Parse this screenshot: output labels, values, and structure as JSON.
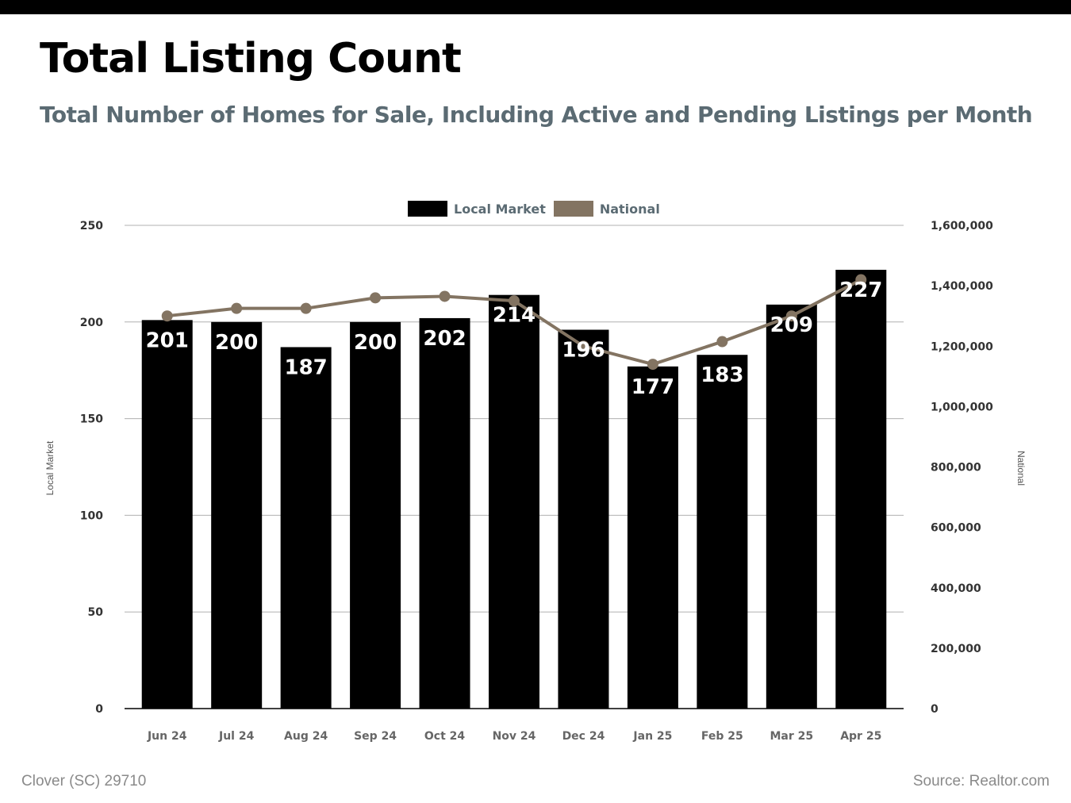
{
  "header": {
    "title": "Total Listing Count",
    "subtitle": "Total Number of Homes for Sale, Including Active and Pending Listings per Month"
  },
  "footer": {
    "location": "Clover (SC) 29710",
    "source": "Source: Realtor.com"
  },
  "colors": {
    "local_bar": "#000000",
    "national_line": "#837462",
    "gridline": "#b0b0b0",
    "subtitle": "#5b6b73"
  },
  "chart_data": {
    "type": "bar",
    "title": "Total Listing Count",
    "subtitle": "Total Number of Homes for Sale, Including Active and Pending Listings per Month",
    "categories": [
      "Jun 24",
      "Jul 24",
      "Aug 24",
      "Sep 24",
      "Oct 24",
      "Nov 24",
      "Dec 24",
      "Jan 25",
      "Feb 25",
      "Mar 25",
      "Apr 25"
    ],
    "series": [
      {
        "name": "Local Market",
        "type": "bar",
        "axis": "left",
        "values": [
          201,
          200,
          187,
          200,
          202,
          214,
          196,
          177,
          183,
          209,
          227
        ]
      },
      {
        "name": "National",
        "type": "line",
        "axis": "right",
        "values": [
          1300000,
          1325000,
          1325000,
          1360000,
          1365000,
          1350000,
          1200000,
          1140000,
          1215000,
          1300000,
          1420000
        ]
      }
    ],
    "ylabel": "Local Market",
    "y2label": "National",
    "ylim": [
      0,
      250
    ],
    "y2lim": [
      0,
      1600000
    ],
    "yticks": [
      "0",
      "50",
      "100",
      "150",
      "200",
      "250"
    ],
    "y2ticks": [
      "0",
      "200,000",
      "400,000",
      "600,000",
      "800,000",
      "1,000,000",
      "1,200,000",
      "1,400,000",
      "1,600,000"
    ],
    "legend": "top-center",
    "grid": true
  }
}
